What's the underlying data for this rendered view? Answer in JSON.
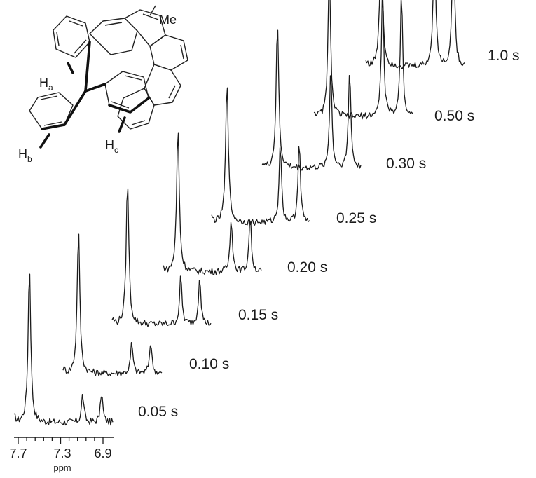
{
  "figure": {
    "molecule": {
      "substituent_label": "Me",
      "hydrogens": [
        {
          "letter": "H",
          "sub": "a"
        },
        {
          "letter": "H",
          "sub": "b"
        },
        {
          "letter": "H",
          "sub": "c"
        }
      ]
    },
    "axis": {
      "ticks": [
        "7.7",
        "7.3",
        "6.9"
      ],
      "unit": "ppm"
    },
    "spectra": [
      {
        "time_label": "0.05 s",
        "peak_heights": [
          1.0,
          0.18,
          0.19
        ]
      },
      {
        "time_label": "0.10 s",
        "peak_heights": [
          1.0,
          0.21,
          0.22
        ]
      },
      {
        "time_label": "0.15 s",
        "peak_heights": [
          1.0,
          0.33,
          0.34
        ]
      },
      {
        "time_label": "0.20 s",
        "peak_heights": [
          1.0,
          0.38,
          0.39
        ]
      },
      {
        "time_label": "0.25 s",
        "peak_heights": [
          1.0,
          0.56,
          0.57
        ]
      },
      {
        "time_label": "0.30 s",
        "peak_heights": [
          1.0,
          0.68,
          0.69
        ]
      },
      {
        "time_label": "0.50 s",
        "peak_heights": [
          1.0,
          0.88,
          0.88
        ]
      },
      {
        "time_label": "1.0 s",
        "peak_heights": [
          1.0,
          0.97,
          0.97
        ]
      }
    ]
  }
}
